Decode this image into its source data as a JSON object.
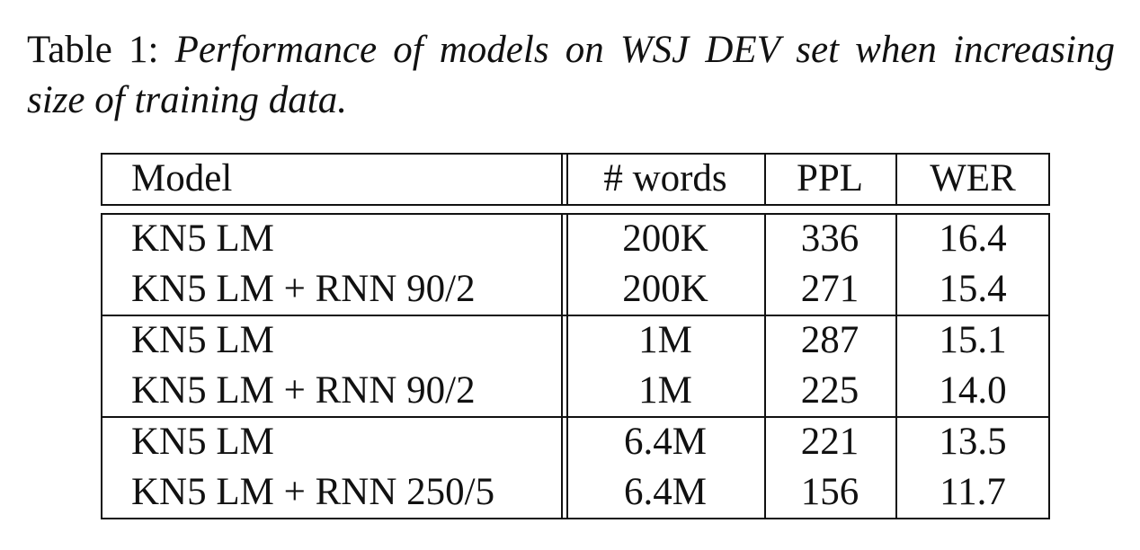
{
  "caption": {
    "label": "Table 1:",
    "text": "Performance of models on WSJ DEV set when increasing size of training data."
  },
  "table": {
    "headers": [
      "Model",
      "# words",
      "PPL",
      "WER"
    ],
    "groups": [
      [
        {
          "model": "KN5 LM",
          "words": "200K",
          "ppl": "336",
          "wer": "16.4"
        },
        {
          "model": "KN5 LM + RNN 90/2",
          "words": "200K",
          "ppl": "271",
          "wer": "15.4"
        }
      ],
      [
        {
          "model": "KN5 LM",
          "words": "1M",
          "ppl": "287",
          "wer": "15.1"
        },
        {
          "model": "KN5 LM + RNN 90/2",
          "words": "1M",
          "ppl": "225",
          "wer": "14.0"
        }
      ],
      [
        {
          "model": "KN5 LM",
          "words": "6.4M",
          "ppl": "221",
          "wer": "13.5"
        },
        {
          "model": "KN5 LM + RNN 250/5",
          "words": "6.4M",
          "ppl": "156",
          "wer": "11.7"
        }
      ]
    ]
  }
}
